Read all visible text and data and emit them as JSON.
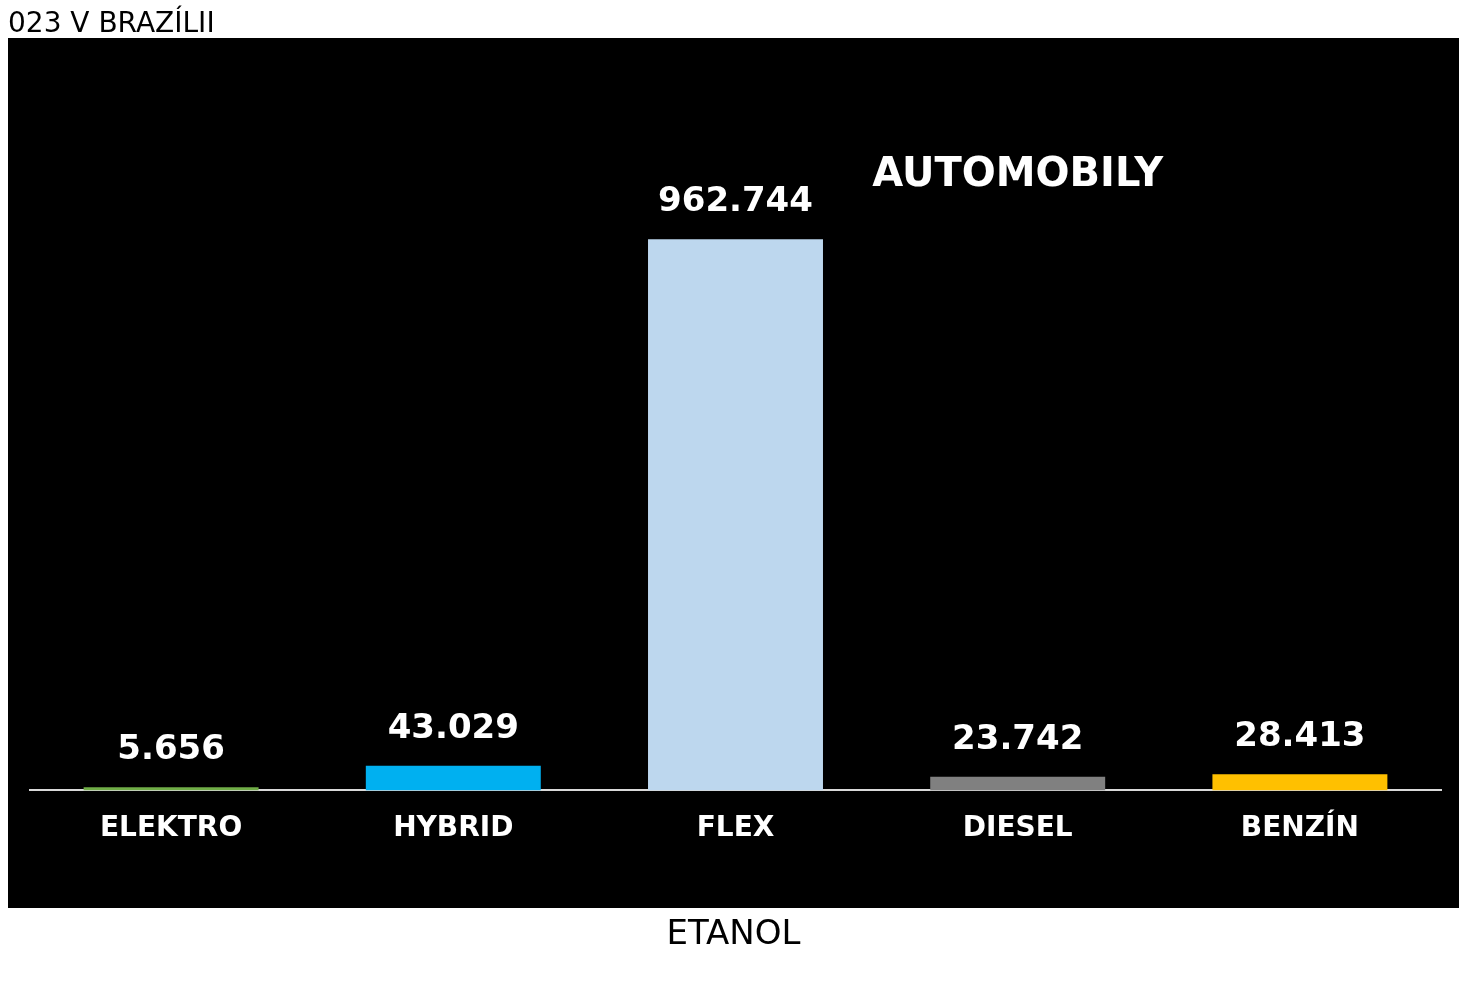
{
  "chart_data": {
    "type": "bar",
    "title": "AUTOMOBILY",
    "subtitle": "023 V BRAZÍLII",
    "xlabel": "ETANOL",
    "categories": [
      "ELEKTRO",
      "HYBRID",
      "FLEX",
      "DIESEL",
      "BENZÍN"
    ],
    "values": [
      5.656,
      43.029,
      962.744,
      23.742,
      28.413
    ],
    "colors": [
      "#70ad47",
      "#00b0f0",
      "#bdd7ee",
      "#808080",
      "#ffc000"
    ],
    "data_labels": true
  }
}
